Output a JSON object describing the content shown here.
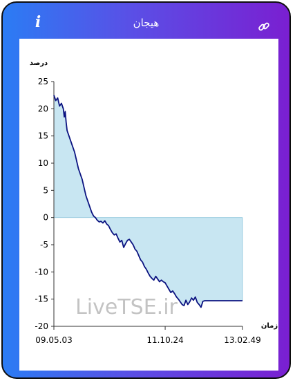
{
  "header": {
    "title": "هیجان",
    "info_icon": "info-icon",
    "link_icon": "link-icon",
    "info_label": "i"
  },
  "watermark": "LiveTSE.ir",
  "chart_data": {
    "type": "area",
    "ylabel": "درصد",
    "xlabel": "زمان",
    "ylim": [
      -20,
      25
    ],
    "y_ticks": [
      25,
      20,
      15,
      10,
      5,
      0,
      -5,
      -10,
      -15,
      -20
    ],
    "x_tick_labels": [
      "09.05.03",
      "11.10.24",
      "13.02.49"
    ],
    "x_tick_positions": [
      0,
      0.59,
      1
    ],
    "fill_color": "#c8e6f2",
    "line_color": "#0a1280",
    "series": [
      {
        "values": [
          [
            0,
            22.5
          ],
          [
            0.01,
            21.5
          ],
          [
            0.02,
            22
          ],
          [
            0.03,
            20.5
          ],
          [
            0.04,
            21
          ],
          [
            0.05,
            20
          ],
          [
            0.055,
            18.5
          ],
          [
            0.06,
            19.5
          ],
          [
            0.065,
            17.5
          ],
          [
            0.07,
            16
          ],
          [
            0.08,
            15
          ],
          [
            0.09,
            14
          ],
          [
            0.1,
            13
          ],
          [
            0.11,
            12
          ],
          [
            0.12,
            10.5
          ],
          [
            0.13,
            9
          ],
          [
            0.14,
            8
          ],
          [
            0.15,
            7
          ],
          [
            0.16,
            5.5
          ],
          [
            0.17,
            4
          ],
          [
            0.18,
            3
          ],
          [
            0.19,
            2
          ],
          [
            0.2,
            1
          ],
          [
            0.21,
            0.3
          ],
          [
            0.22,
            0
          ],
          [
            0.23,
            -0.5
          ],
          [
            0.24,
            -0.8
          ],
          [
            0.25,
            -0.7
          ],
          [
            0.26,
            -1
          ],
          [
            0.27,
            -0.6
          ],
          [
            0.28,
            -1.2
          ],
          [
            0.29,
            -1.5
          ],
          [
            0.3,
            -2.2
          ],
          [
            0.31,
            -2.8
          ],
          [
            0.32,
            -3.2
          ],
          [
            0.33,
            -3
          ],
          [
            0.34,
            -3.8
          ],
          [
            0.35,
            -4.5
          ],
          [
            0.36,
            -4.2
          ],
          [
            0.37,
            -5.5
          ],
          [
            0.38,
            -4.8
          ],
          [
            0.39,
            -4.2
          ],
          [
            0.4,
            -4
          ],
          [
            0.41,
            -4.5
          ],
          [
            0.42,
            -5
          ],
          [
            0.43,
            -5.8
          ],
          [
            0.44,
            -6.2
          ],
          [
            0.45,
            -7
          ],
          [
            0.46,
            -7.8
          ],
          [
            0.47,
            -8.2
          ],
          [
            0.48,
            -9
          ],
          [
            0.49,
            -9.5
          ],
          [
            0.5,
            -10.2
          ],
          [
            0.51,
            -10.8
          ],
          [
            0.52,
            -11.2
          ],
          [
            0.53,
            -11.5
          ],
          [
            0.54,
            -10.8
          ],
          [
            0.55,
            -11.3
          ],
          [
            0.56,
            -11.8
          ],
          [
            0.57,
            -11.5
          ],
          [
            0.58,
            -11.8
          ],
          [
            0.59,
            -12
          ],
          [
            0.6,
            -12.6
          ],
          [
            0.61,
            -13.2
          ],
          [
            0.62,
            -13.8
          ],
          [
            0.63,
            -13.5
          ],
          [
            0.64,
            -14
          ],
          [
            0.65,
            -14.6
          ],
          [
            0.66,
            -15
          ],
          [
            0.67,
            -15.5
          ],
          [
            0.68,
            -16
          ],
          [
            0.69,
            -16.2
          ],
          [
            0.7,
            -15.2
          ],
          [
            0.71,
            -16
          ],
          [
            0.72,
            -15.5
          ],
          [
            0.73,
            -14.8
          ],
          [
            0.74,
            -15.2
          ],
          [
            0.75,
            -14.6
          ],
          [
            0.76,
            -15.6
          ],
          [
            0.77,
            -16
          ],
          [
            0.78,
            -16.5
          ],
          [
            0.79,
            -15.4
          ],
          [
            0.8,
            -15.3
          ],
          [
            0.85,
            -15.3
          ],
          [
            0.9,
            -15.3
          ],
          [
            0.95,
            -15.3
          ],
          [
            1,
            -15.3
          ]
        ]
      }
    ]
  }
}
